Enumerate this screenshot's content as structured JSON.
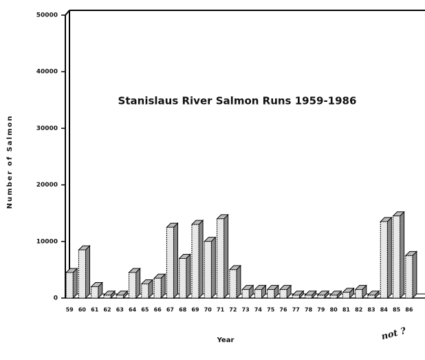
{
  "chart_data": {
    "type": "bar",
    "title": "Stanislaus River Salmon Runs   1959-1986",
    "y_label": "Number of Salmon",
    "x_label": "Year",
    "annotation": "not ?",
    "categories": [
      "59",
      "60",
      "61",
      "62",
      "63",
      "64",
      "65",
      "66",
      "67",
      "68",
      "69",
      "70",
      "71",
      "72",
      "73",
      "74",
      "75",
      "76",
      "77",
      "78",
      "79",
      "80",
      "81",
      "82",
      "83",
      "84",
      "85",
      "86"
    ],
    "values": [
      4500,
      8500,
      2000,
      500,
      500,
      4500,
      2500,
      3500,
      12500,
      7000,
      13000,
      10000,
      14000,
      5000,
      1500,
      1500,
      1500,
      1500,
      500,
      500,
      500,
      500,
      1000,
      1500,
      500,
      13500,
      14500,
      7500
    ],
    "color": "#e8e8e8",
    "ylim": [
      0,
      50000
    ],
    "yticks": [
      0,
      10000,
      20000,
      30000,
      40000,
      50000
    ]
  }
}
